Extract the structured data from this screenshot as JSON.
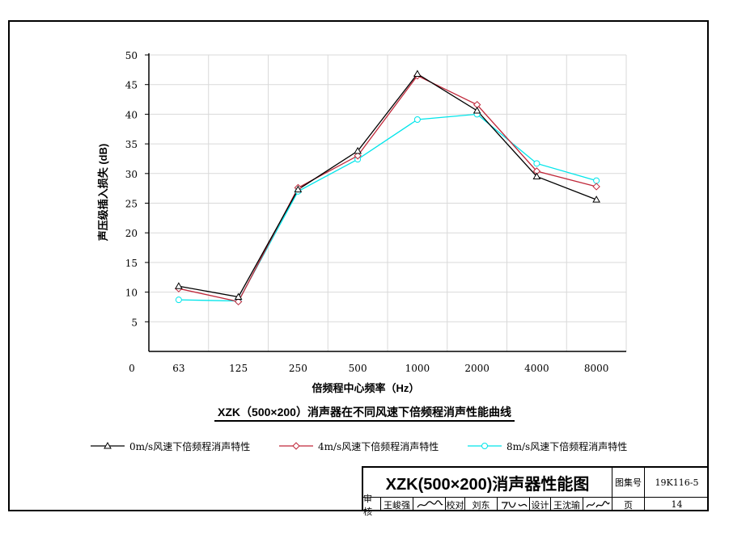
{
  "chart_data": {
    "type": "line",
    "categories": [
      "63",
      "125",
      "250",
      "500",
      "1000",
      "2000",
      "4000",
      "8000"
    ],
    "ylabel": "声压级插入损失 (dB)",
    "xlabel": "倍频程中心频率（Hz）",
    "y_ticks": [
      5,
      10,
      15,
      20,
      25,
      30,
      35,
      40,
      45,
      50
    ],
    "y_zero_label": "0",
    "ylim": [
      0,
      50
    ],
    "grid": true,
    "series": [
      {
        "name": "0m/s风速下倍频程消声特性",
        "color": "#000000",
        "marker": "triangle",
        "values": [
          11.0,
          9.2,
          27.3,
          33.8,
          46.8,
          40.6,
          29.5,
          25.6
        ]
      },
      {
        "name": "4m/s风速下倍频程消声特性",
        "color": "#c0283a",
        "marker": "diamond",
        "values": [
          10.6,
          8.4,
          27.6,
          33.0,
          46.5,
          41.6,
          30.4,
          27.8
        ]
      },
      {
        "name": "8m/s风速下倍频程消声特性",
        "color": "#00e5ea",
        "marker": "circle",
        "values": [
          8.7,
          8.5,
          27.0,
          32.4,
          39.1,
          40.0,
          31.7,
          28.8
        ]
      }
    ]
  },
  "subtitle": "XZK（500×200）消声器在不同风速下倍频程消声性能曲线",
  "title_block": {
    "title": "XZK(500×200)消声器性能图",
    "atlas_label": "图集号",
    "atlas_no": "19K116-5",
    "review_label": "审核",
    "reviewer": "王峻强",
    "check_label": "校对",
    "checker": "刘东",
    "design_label": "设计",
    "designer": "王沈瑜",
    "page_label": "页",
    "page_no": "14"
  }
}
